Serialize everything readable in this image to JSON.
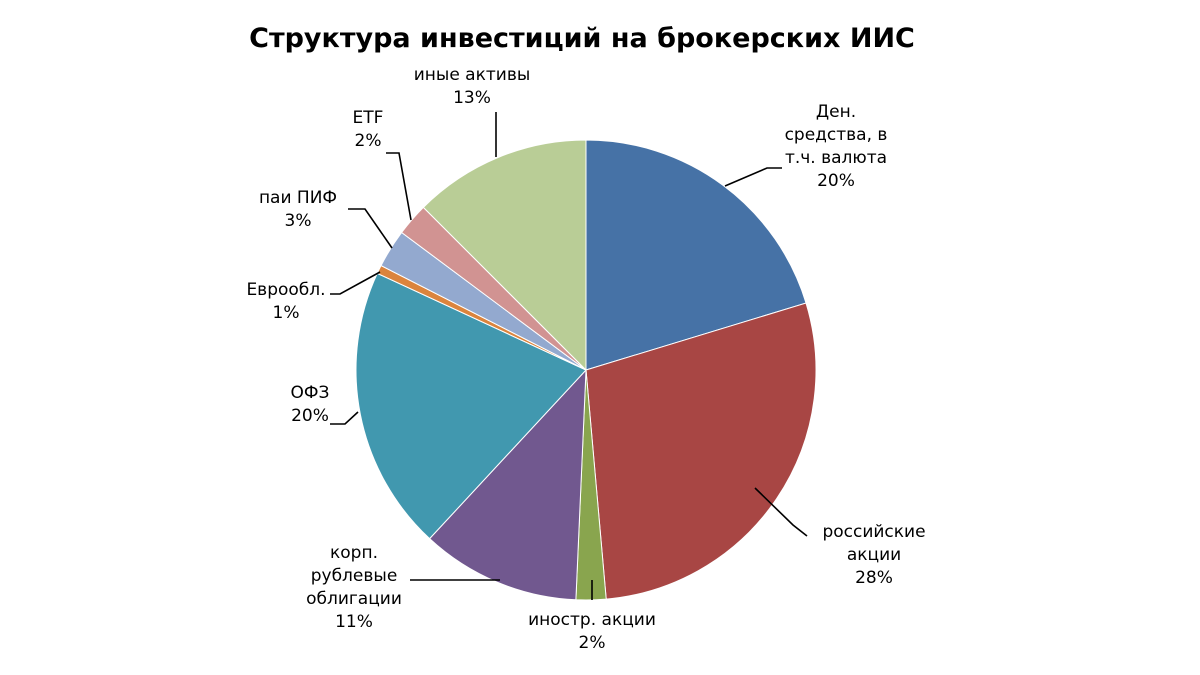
{
  "chart_data": {
    "type": "pie",
    "title": "Структура инвестиций на брокерских ИИС",
    "start_angle_deg": 0,
    "direction": "clockwise",
    "slices": [
      {
        "name": "Ден. средства, в т.ч. валюта",
        "lines": [
          "Ден.",
          "средства, в",
          "т.ч. валюта"
        ],
        "value": 20.3,
        "label": "20%",
        "color": "#4672A6"
      },
      {
        "name": "российские акции",
        "lines": [
          "российские",
          "акции"
        ],
        "value": 28.3,
        "label": "28%",
        "color": "#A84644"
      },
      {
        "name": "иностр. акции",
        "lines": [
          "иностр. акции"
        ],
        "value": 2.1,
        "label": "2%",
        "color": "#89A54E"
      },
      {
        "name": "корп. рублевые облигации",
        "lines": [
          "корп.",
          "рублевые",
          "облигации"
        ],
        "value": 11.2,
        "label": "11%",
        "color": "#71588F"
      },
      {
        "name": "ОФЗ",
        "lines": [
          "ОФЗ"
        ],
        "value": 20.0,
        "label": "20%",
        "color": "#4198AF"
      },
      {
        "name": "Еврообл.",
        "lines": [
          "Еврообл."
        ],
        "value": 0.6,
        "label": "1%",
        "color": "#DB843D"
      },
      {
        "name": "паи ПИФ",
        "lines": [
          "паи ПИФ"
        ],
        "value": 2.7,
        "label": "3%",
        "color": "#93A9CF"
      },
      {
        "name": "ETF",
        "lines": [
          "ETF"
        ],
        "value": 2.3,
        "label": "2%",
        "color": "#D19392"
      },
      {
        "name": "иные активы",
        "lines": [
          "иные активы"
        ],
        "value": 12.5,
        "label": "13%",
        "color": "#B9CD96"
      }
    ]
  }
}
